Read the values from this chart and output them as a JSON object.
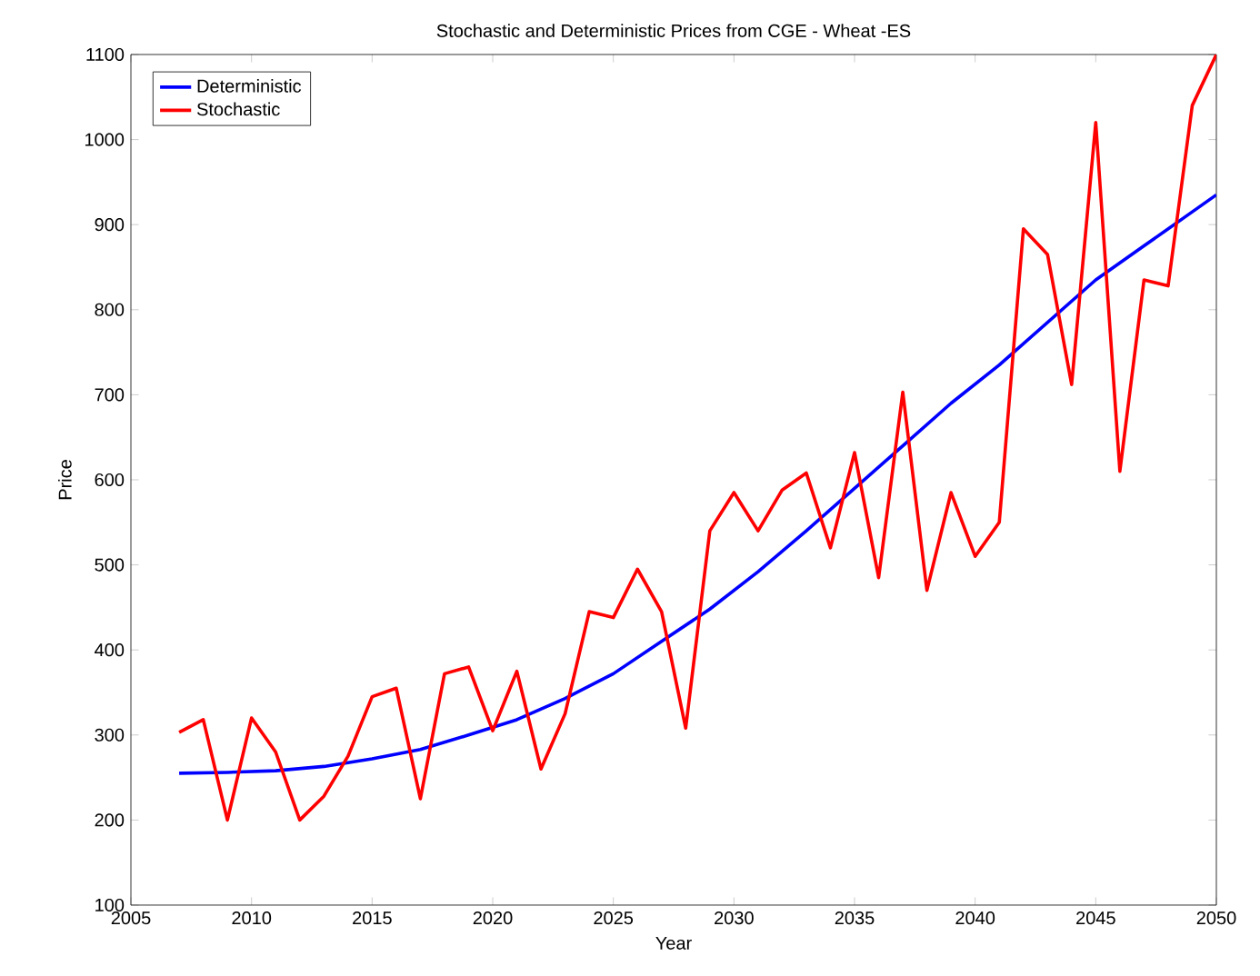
{
  "chart_data": {
    "type": "line",
    "title": "Stochastic and Deterministic Prices from CGE - Wheat -ES",
    "xlabel": "Year",
    "ylabel": "Price",
    "xlim": [
      2005,
      2050
    ],
    "ylim": [
      100,
      1100
    ],
    "xticks": [
      2005,
      2010,
      2015,
      2020,
      2025,
      2030,
      2035,
      2040,
      2045,
      2050
    ],
    "yticks": [
      100,
      200,
      300,
      400,
      500,
      600,
      700,
      800,
      900,
      1000,
      1100
    ],
    "legend": "top left",
    "grid": false,
    "marker": "none",
    "line_style": "solid",
    "series": [
      {
        "name": "Deterministic",
        "color": "#0000ff",
        "x": [
          2007,
          2009,
          2011,
          2013,
          2015,
          2017,
          2019,
          2021,
          2023,
          2025,
          2027,
          2029,
          2031,
          2033,
          2035,
          2037,
          2039,
          2041,
          2043,
          2045,
          2047,
          2049,
          2050
        ],
        "values": [
          255,
          256,
          258,
          263,
          272,
          283,
          300,
          318,
          343,
          372,
          410,
          448,
          492,
          540,
          590,
          640,
          690,
          735,
          785,
          835,
          875,
          915,
          935
        ]
      },
      {
        "name": "Stochastic",
        "color": "#ff0000",
        "x": [
          2007,
          2008,
          2009,
          2010,
          2011,
          2012,
          2013,
          2014,
          2015,
          2016,
          2017,
          2018,
          2019,
          2020,
          2021,
          2022,
          2023,
          2024,
          2025,
          2026,
          2027,
          2028,
          2029,
          2030,
          2031,
          2032,
          2033,
          2034,
          2035,
          2036,
          2037,
          2038,
          2039,
          2040,
          2041,
          2042,
          2043,
          2044,
          2045,
          2046,
          2047,
          2048,
          2049,
          2050
        ],
        "values": [
          303,
          318,
          200,
          320,
          280,
          200,
          228,
          275,
          345,
          355,
          225,
          372,
          380,
          305,
          375,
          260,
          325,
          445,
          438,
          495,
          445,
          308,
          540,
          585,
          540,
          588,
          608,
          520,
          632,
          485,
          703,
          470,
          585,
          510,
          550,
          895,
          865,
          712,
          1020,
          610,
          835,
          828,
          1040,
          1100
        ]
      }
    ]
  }
}
